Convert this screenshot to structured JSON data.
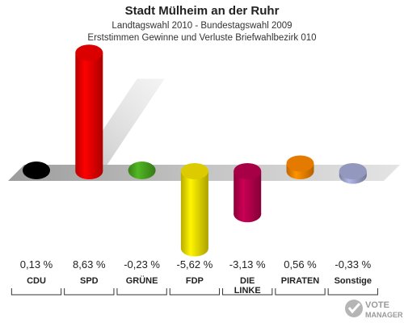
{
  "chart_data": {
    "type": "bar",
    "title": "Stadt Mülheim an der Ruhr",
    "subtitle_1": "Landtagswahl 2010 - Bundestagswahl 2009",
    "subtitle_2": "Erststimmen Gewinne und Verluste Briefwahlbezirk 010",
    "categories": [
      {
        "label": "CDU",
        "label_2": ""
      },
      {
        "label": "SPD",
        "label_2": ""
      },
      {
        "label": "GRÜNE",
        "label_2": ""
      },
      {
        "label": "FDP",
        "label_2": ""
      },
      {
        "label": "DIE",
        "label_2": "LINKE"
      },
      {
        "label": "PIRATEN",
        "label_2": ""
      },
      {
        "label": "Sonstige",
        "label_2": ""
      }
    ],
    "values": [
      0.13,
      8.63,
      -0.23,
      -5.62,
      -3.13,
      0.56,
      -0.33
    ],
    "value_labels": [
      "0,13 %",
      "8,63 %",
      "-0,23 %",
      "-5,62 %",
      "-3,13 %",
      "0,56 %",
      "-0,33 %"
    ],
    "colors": [
      "#000000",
      "#e50000",
      "#46a01e",
      "#e6d600",
      "#b0004a",
      "#f08000",
      "#9aa0c8"
    ],
    "ylim": [
      -6.2,
      9.2
    ]
  },
  "watermark": {
    "line1": "VOTE",
    "line2": "MANAGER"
  }
}
